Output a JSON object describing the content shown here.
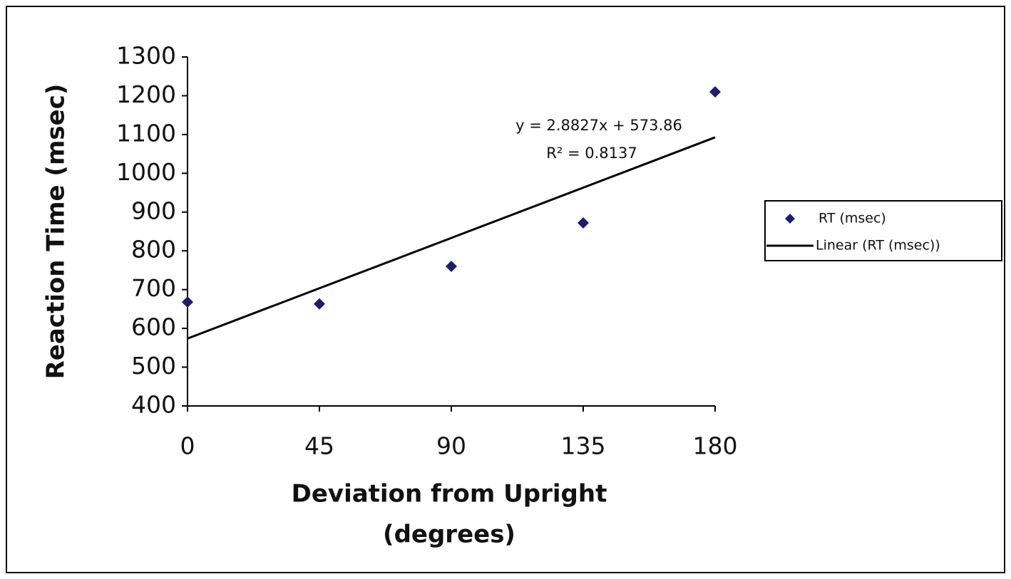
{
  "chart_data": {
    "type": "scatter",
    "x_label": [
      "Deviation from Upright",
      "(degrees)"
    ],
    "y_label": "Reaction Time (msec)",
    "x": [
      0,
      45,
      90,
      135,
      180
    ],
    "series": [
      {
        "name": "RT (msec)",
        "color": "#1c1c70",
        "mode": "markers",
        "values": [
          668,
          663,
          760,
          872,
          1210
        ]
      },
      {
        "name": "Linear (RT (msec))",
        "color": "#000000",
        "mode": "line",
        "values": [
          573.86,
          703.58,
          833.3,
          963.02,
          1092.75
        ]
      }
    ],
    "annotations": [
      "y = 2.8827x + 573.86",
      "R² = 0.8137"
    ],
    "xlim": [
      0,
      180
    ],
    "xticks": [
      0,
      45,
      90,
      135,
      180
    ],
    "ylim": [
      400,
      1300
    ],
    "yticks": [
      400,
      500,
      600,
      700,
      800,
      900,
      1000,
      1100,
      1200,
      1300
    ],
    "grid": false,
    "legend": "right"
  }
}
